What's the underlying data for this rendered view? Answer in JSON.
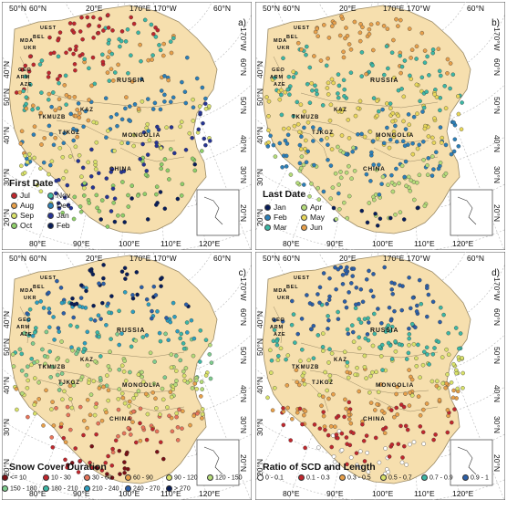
{
  "colors": {
    "land": "#f6dfae",
    "border": "#9a8a66",
    "graticule": "#b8b8b8",
    "frame": "#555555"
  },
  "coordinate_labels": {
    "top": [
      "50°N",
      "60°N",
      "20°E",
      "170°E",
      "170°W",
      "60°N"
    ],
    "right": [
      "170°W",
      "60°N",
      "50°N",
      "40°N",
      "30°N",
      "20°N"
    ],
    "left": [
      "40°N",
      "50°N",
      "40°N",
      "30°N",
      "20°N"
    ],
    "bottom": [
      "80°E",
      "90°E",
      "100°E",
      "110°E",
      "120°E"
    ]
  },
  "place_labels": {
    "russia": "RUSSIA",
    "kaz": "KAZ",
    "mongolia": "MONGOLIA",
    "china": "CHINA",
    "tkmuzb": "TKMUZB",
    "tjkgz": "TJKGZ",
    "uest": "UEST",
    "bel": "BEL",
    "mda": "MDA",
    "ukr": "UKR",
    "geo": "GEO",
    "arm": "ARM",
    "aze": "AZE"
  },
  "panels": [
    {
      "letter": "a)",
      "legend_title": "First Date",
      "legend_items": [
        {
          "label": "Jul",
          "color": "#c0272d"
        },
        {
          "label": "Nov",
          "color": "#3cb7a5"
        },
        {
          "label": "Aug",
          "color": "#e8a04a"
        },
        {
          "label": "Dec",
          "color": "#2c7fb8"
        },
        {
          "label": "Sep",
          "color": "#d9e26a"
        },
        {
          "label": "Jan",
          "color": "#253494"
        },
        {
          "label": "Oct",
          "color": "#8fd06a"
        },
        {
          "label": "Feb",
          "color": "#081d58"
        }
      ]
    },
    {
      "letter": "b)",
      "legend_title": "Last Date",
      "legend_items": [
        {
          "label": "Jan",
          "color": "#081d58"
        },
        {
          "label": "Apr",
          "color": "#b5dc7a"
        },
        {
          "label": "Feb",
          "color": "#2c7fb8"
        },
        {
          "label": "May",
          "color": "#e8d75a"
        },
        {
          "label": "Mar",
          "color": "#3cb7a5"
        },
        {
          "label": "Jun",
          "color": "#e8a04a"
        }
      ]
    },
    {
      "letter": "c)",
      "legend_title": "Snow Cover Duration",
      "legend_items": [
        {
          "label": "<= 10",
          "color": "#7a0f14"
        },
        {
          "label": "10 - 30",
          "color": "#c0272d"
        },
        {
          "label": "30 - 60",
          "color": "#e8745a"
        },
        {
          "label": "60 - 90",
          "color": "#e8a04a"
        },
        {
          "label": "90 - 120",
          "color": "#d9e26a"
        },
        {
          "label": "120 - 150",
          "color": "#b5dc7a"
        },
        {
          "label": "150 - 180",
          "color": "#7fcd8f"
        },
        {
          "label": "180 - 210",
          "color": "#3cb7a5"
        },
        {
          "label": "210 - 240",
          "color": "#2c9fc0"
        },
        {
          "label": "240 - 270",
          "color": "#2c5fa8"
        },
        {
          "label": "> 270",
          "color": "#081d58"
        }
      ]
    },
    {
      "letter": "d)",
      "legend_title": "Ratio of SCD and Length",
      "legend_items": [
        {
          "label": "0 - 0.1",
          "color": "#ffffff"
        },
        {
          "label": "0.1 - 0.3",
          "color": "#c0272d"
        },
        {
          "label": "0.3 - 0.5",
          "color": "#e8a04a"
        },
        {
          "label": "0.5 - 0.7",
          "color": "#d9e26a"
        },
        {
          "label": "0.7 - 0.9",
          "color": "#3cb7a5"
        },
        {
          "label": "0.9 - 1",
          "color": "#2c5fa8"
        }
      ]
    }
  ]
}
